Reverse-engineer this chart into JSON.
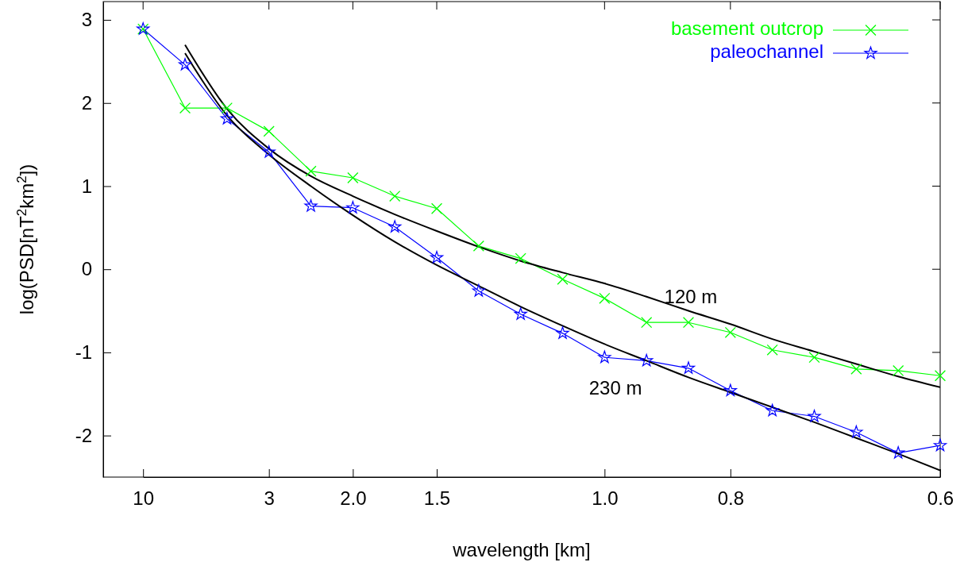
{
  "chart_data": {
    "type": "line",
    "xlabel": "wavelength [km]",
    "ylabel": "log(PSD[nT$^{2}$km$^{2}$])",
    "categories": [
      "10",
      null,
      null,
      "3",
      null,
      "2.0",
      null,
      "1.5",
      null,
      null,
      null,
      "1.0",
      null,
      null,
      "0.8",
      null,
      null,
      null,
      null,
      "0.6"
    ],
    "series": [
      {
        "name": "basement outcrop",
        "color": "#00ff00",
        "marker": "cross",
        "values": [
          2.89,
          1.94,
          1.94,
          1.66,
          1.18,
          1.1,
          0.88,
          0.73,
          0.28,
          0.13,
          -0.12,
          -0.35,
          -0.64,
          -0.64,
          -0.76,
          -0.97,
          -1.06,
          -1.2,
          -1.22,
          -1.28
        ]
      },
      {
        "name": "paleochannel",
        "color": "#0000ff",
        "marker": "star",
        "values": [
          2.89,
          2.46,
          1.81,
          1.41,
          0.76,
          0.74,
          0.51,
          0.14,
          -0.26,
          -0.54,
          -0.77,
          -1.06,
          -1.1,
          -1.19,
          -1.46,
          -1.7,
          -1.77,
          -1.96,
          -2.21,
          -2.12
        ]
      },
      {
        "color": "#000000",
        "marker": "none",
        "values": [
          null,
          2.7,
          1.93,
          1.45,
          1.12,
          0.88,
          0.66,
          0.46,
          0.27,
          0.1,
          -0.04,
          -0.17,
          -0.33,
          -0.5,
          -0.66,
          -0.84,
          -0.99,
          -1.14,
          -1.29,
          -1.42
        ]
      },
      {
        "color": "#000000",
        "marker": "none",
        "values": [
          null,
          2.6,
          1.85,
          1.38,
          1.0,
          0.65,
          0.33,
          0.05,
          -0.2,
          -0.45,
          -0.68,
          -0.9,
          -1.1,
          -1.3,
          -1.48,
          -1.66,
          -1.84,
          -2.03,
          -2.22,
          -2.42
        ]
      }
    ],
    "ylim": [
      -2.5,
      3.22
    ],
    "yticks": [
      -2,
      -1,
      0,
      1,
      2,
      3
    ],
    "annotations": [
      "120 m",
      "230 m"
    ],
    "legend": "top right",
    "grid": false
  }
}
